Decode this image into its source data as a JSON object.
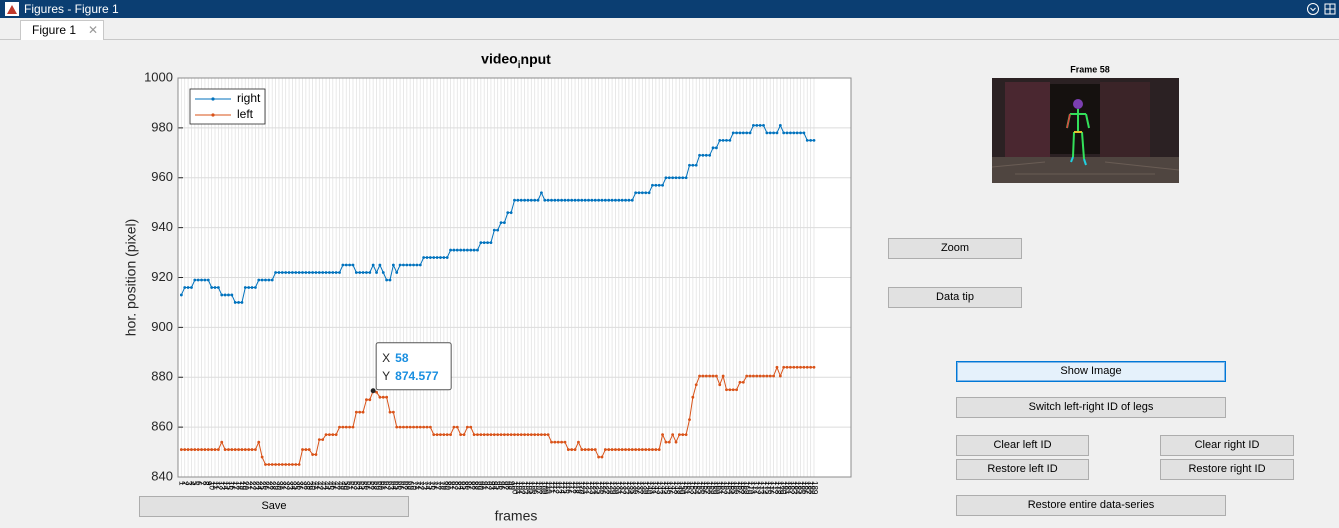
{
  "window": {
    "title": "Figures - Figure 1",
    "tab": "Figure 1"
  },
  "chart_data": {
    "type": "line",
    "title": "video_input",
    "xlabel": "frames",
    "ylabel": "hor. position (pixel)",
    "x": [
      1,
      2,
      3,
      4,
      5,
      6,
      7,
      8,
      9,
      10,
      11,
      12,
      13,
      14,
      15,
      16,
      17,
      18,
      19,
      20,
      21,
      22,
      23,
      24,
      25,
      26,
      27,
      28,
      29,
      30,
      31,
      32,
      33,
      34,
      35,
      36,
      37,
      38,
      39,
      40,
      41,
      42,
      43,
      44,
      45,
      46,
      47,
      48,
      49,
      50,
      51,
      52,
      53,
      54,
      55,
      56,
      57,
      58,
      59,
      60,
      61,
      62,
      63,
      64,
      65,
      66,
      67,
      68,
      69,
      70,
      71,
      72,
      73,
      74,
      75,
      76,
      77,
      78,
      79,
      80,
      81,
      82,
      83,
      84,
      85,
      86,
      87,
      88,
      89,
      90,
      91,
      92,
      93,
      94,
      95,
      96,
      97,
      98,
      99,
      100,
      101,
      102,
      103,
      104,
      105,
      106,
      107,
      108,
      109,
      110,
      111,
      112,
      113,
      114,
      115,
      116,
      117,
      118,
      119,
      120,
      121,
      122,
      123,
      124,
      125,
      126,
      127,
      128,
      129,
      130,
      131,
      132,
      133,
      134,
      135,
      136,
      137,
      138,
      139,
      140,
      141,
      142,
      143,
      144,
      145,
      146,
      147,
      148,
      149,
      150,
      151,
      152,
      153,
      154,
      155,
      156,
      157,
      158,
      159,
      160,
      161,
      162,
      163,
      164,
      165,
      166,
      167,
      168,
      169,
      170,
      171,
      172,
      173,
      174,
      175,
      176,
      177,
      178,
      179,
      180,
      181,
      182,
      183,
      184,
      185,
      186,
      187,
      188,
      189
    ],
    "xlim": [
      0,
      200
    ],
    "ylim": [
      840,
      1000
    ],
    "yticks": [
      840,
      860,
      880,
      900,
      920,
      940,
      960,
      980,
      1000
    ],
    "grid": true,
    "legend": "upper left",
    "series": [
      {
        "name": "right",
        "color": "#0072bd",
        "values": [
          913,
          916,
          916,
          916,
          919,
          919,
          919,
          919,
          919,
          916,
          916,
          916,
          913,
          913,
          913,
          913,
          910,
          910,
          910,
          916,
          916,
          916,
          916,
          919,
          919,
          919,
          919,
          919,
          922,
          922,
          922,
          922,
          922,
          922,
          922,
          922,
          922,
          922,
          922,
          922,
          922,
          922,
          922,
          922,
          922,
          922,
          922,
          922,
          925,
          925,
          925,
          925,
          922,
          922,
          922,
          922,
          922,
          925,
          922,
          925,
          922,
          919,
          919,
          925,
          922,
          925,
          925,
          925,
          925,
          925,
          925,
          925,
          928,
          928,
          928,
          928,
          928,
          928,
          928,
          928,
          931,
          931,
          931,
          931,
          931,
          931,
          931,
          931,
          931,
          934,
          934,
          934,
          934,
          939,
          939,
          942,
          942,
          946,
          946,
          951,
          951,
          951,
          951,
          951,
          951,
          951,
          951,
          954,
          951,
          951,
          951,
          951,
          951,
          951,
          951,
          951,
          951,
          951,
          951,
          951,
          951,
          951,
          951,
          951,
          951,
          951,
          951,
          951,
          951,
          951,
          951,
          951,
          951,
          951,
          951,
          954,
          954,
          954,
          954,
          954,
          957,
          957,
          957,
          957,
          960,
          960,
          960,
          960,
          960,
          960,
          960,
          965,
          965,
          965,
          969,
          969,
          969,
          969,
          972,
          972,
          975,
          975,
          975,
          975,
          978,
          978,
          978,
          978,
          978,
          978,
          981,
          981,
          981,
          981,
          978,
          978,
          978,
          978,
          981,
          978,
          978,
          978,
          978,
          978,
          978,
          978,
          975,
          975,
          975
        ]
      },
      {
        "name": "left",
        "color": "#d95319",
        "values": [
          851,
          851,
          851,
          851,
          851,
          851,
          851,
          851,
          851,
          851,
          851,
          851,
          854,
          851,
          851,
          851,
          851,
          851,
          851,
          851,
          851,
          851,
          851,
          854,
          848,
          845,
          845,
          845,
          845,
          845,
          845,
          845,
          845,
          845,
          845,
          845,
          851,
          851,
          851,
          849,
          849,
          855,
          855,
          857,
          857,
          857,
          857,
          860,
          860,
          860,
          860,
          860,
          866,
          866,
          866,
          871,
          871,
          874.577,
          874,
          872,
          872,
          872,
          866,
          866,
          860,
          860,
          860,
          860,
          860,
          860,
          860,
          860,
          860,
          860,
          860,
          857,
          857,
          857,
          857,
          857,
          857,
          860,
          860,
          857,
          857,
          860,
          860,
          857,
          857,
          857,
          857,
          857,
          857,
          857,
          857,
          857,
          857,
          857,
          857,
          857,
          857,
          857,
          857,
          857,
          857,
          857,
          857,
          857,
          857,
          857,
          854,
          854,
          854,
          854,
          854,
          851,
          851,
          851,
          854,
          851,
          851,
          851,
          851,
          851,
          848,
          848,
          851,
          851,
          851,
          851,
          851,
          851,
          851,
          851,
          851,
          851,
          851,
          851,
          851,
          851,
          851,
          851,
          851,
          857,
          854,
          854,
          857,
          854,
          857,
          857,
          857,
          863,
          872,
          877,
          880.5,
          880.5,
          880.5,
          880.5,
          880.5,
          880.5,
          877,
          880.5,
          875,
          875,
          875,
          875,
          878,
          878,
          880.5,
          880.5,
          880.5,
          880.5,
          880.5,
          880.5,
          880.5,
          880.5,
          880.5,
          884,
          880.5,
          884,
          884,
          884,
          884,
          884,
          884,
          884,
          884,
          884,
          884
        ]
      }
    ],
    "datatip": {
      "x_label": "X",
      "x": 58,
      "y_label": "Y",
      "y": 874.577
    }
  },
  "image": {
    "title": "Frame 58"
  },
  "buttons": [
    "Save",
    "Zoom",
    "Data tip",
    "Show Image",
    "Switch left-right ID of legs",
    "Clear left ID",
    "Clear right ID",
    "Restore left ID",
    "Restore right ID",
    "Restore entire data-series"
  ]
}
